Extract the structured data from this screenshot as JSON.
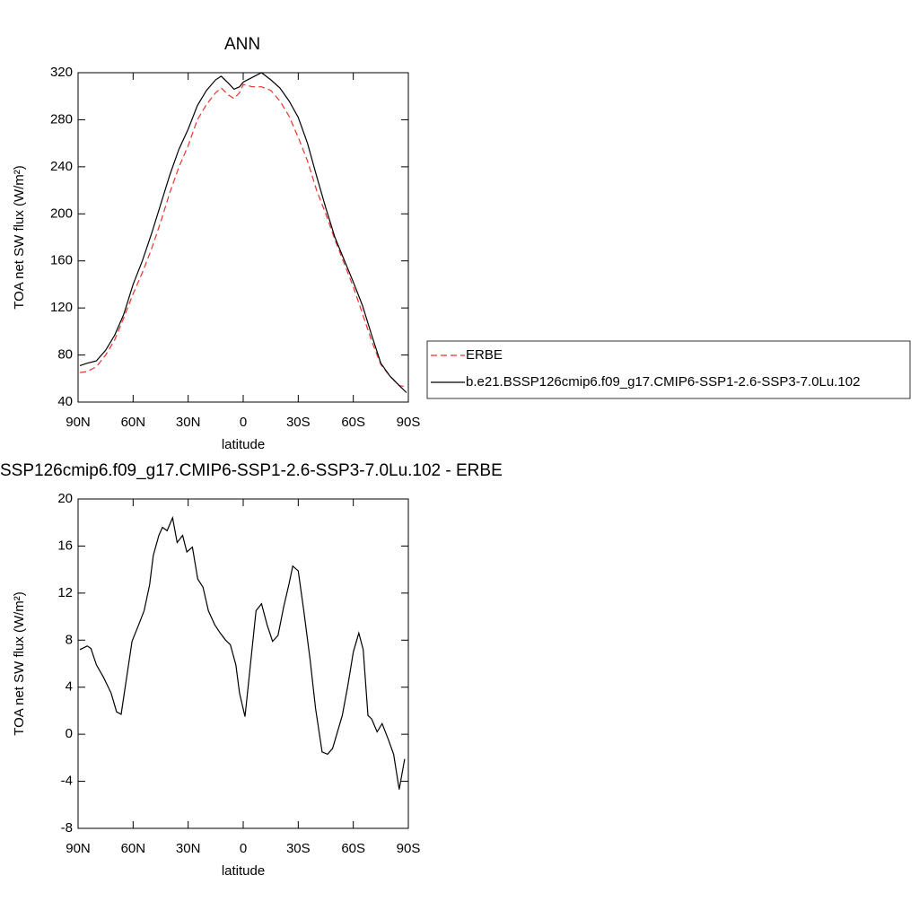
{
  "chart_data": [
    {
      "type": "line",
      "title": "ANN",
      "xlabel": "latitude",
      "ylabel": "TOA net SW flux (W/m²)",
      "x": [
        89,
        85,
        80,
        75,
        70,
        65,
        60,
        55,
        50,
        45,
        40,
        35,
        30,
        25,
        20,
        15,
        12,
        8,
        5,
        2,
        0,
        -5,
        -10,
        -15,
        -20,
        -25,
        -30,
        -35,
        -40,
        -45,
        -50,
        -55,
        -60,
        -65,
        -70,
        -75,
        -80,
        -85,
        -89
      ],
      "series": [
        {
          "name": "ERBE",
          "color": "#e8322c",
          "style": "dashed",
          "values": [
            65,
            66,
            70,
            80,
            93,
            112,
            132,
            150,
            170,
            193,
            218,
            240,
            258,
            280,
            293,
            303,
            307,
            301,
            298,
            303,
            310,
            308,
            308,
            305,
            296,
            283,
            265,
            245,
            220,
            200,
            178,
            158,
            138,
            115,
            92,
            72,
            62,
            54,
            53
          ]
        },
        {
          "name": "b.e21.BSSP126cmip6.f09_g17.CMIP6-SSP1-2.6-SSP3-7.0Lu.102",
          "color": "#000000",
          "style": "solid",
          "values": [
            71,
            73,
            75,
            84,
            97,
            115,
            140,
            160,
            183,
            208,
            233,
            255,
            272,
            292,
            305,
            314,
            317,
            311,
            306,
            308,
            312,
            316,
            320,
            314,
            307,
            296,
            282,
            260,
            232,
            205,
            180,
            161,
            142,
            122,
            97,
            73,
            62,
            54,
            48
          ]
        }
      ],
      "xlim": [
        90,
        -90
      ],
      "xticks": [
        {
          "value": 90,
          "label": "90N"
        },
        {
          "value": 60,
          "label": "60N"
        },
        {
          "value": 30,
          "label": "30N"
        },
        0,
        {
          "value": -30,
          "label": "30S"
        },
        {
          "value": -60,
          "label": "60S"
        },
        {
          "value": -90,
          "label": "90S"
        }
      ],
      "ylim": [
        40,
        320
      ],
      "yticks": [
        40,
        80,
        120,
        160,
        200,
        240,
        280,
        320
      ],
      "legend": "right"
    },
    {
      "type": "line",
      "title": "SSP126cmip6.f09_g17.CMIP6-SSP1-2.6-SSP3-7.0Lu.102 - ERBE",
      "xlabel": "latitude",
      "ylabel": "TOA net SW flux (W/m²)",
      "x": [
        89,
        85,
        83,
        80,
        76,
        72,
        69,
        66.5,
        60.6,
        57,
        54,
        51,
        49,
        46,
        44,
        41.5,
        38.5,
        36,
        33,
        30.7,
        27.7,
        24.8,
        21.9,
        19,
        15.5,
        12.5,
        9.6,
        7,
        4,
        2,
        -1,
        -7,
        -10,
        -13,
        -16,
        -19,
        -22,
        -25,
        -27,
        -30,
        -33,
        -36.5,
        -39.4,
        -43,
        -46,
        -48.7,
        -54,
        -57,
        -60,
        -63,
        -65.4,
        -68,
        -70,
        -73,
        -75.7,
        -79,
        -82,
        -85,
        -88
      ],
      "series": [
        {
          "name": null,
          "color": "#000000",
          "style": "solid",
          "values": [
            7.2,
            7.5,
            7.3,
            5.9,
            4.8,
            3.5,
            1.9,
            1.7,
            7.9,
            9.3,
            10.5,
            12.7,
            15.2,
            16.9,
            17.6,
            17.3,
            18.4,
            16.3,
            16.9,
            15.5,
            15.9,
            13.2,
            12.5,
            10.5,
            9.3,
            8.6,
            8.0,
            7.6,
            5.9,
            3.5,
            1.5,
            10.5,
            11.1,
            9.3,
            7.9,
            8.4,
            10.8,
            12.8,
            14.3,
            13.9,
            10.5,
            6.3,
            2.2,
            -1.5,
            -1.7,
            -1.2,
            1.6,
            4.1,
            7.0,
            8.6,
            7.2,
            1.6,
            1.3,
            0.2,
            0.9,
            -0.4,
            -1.7,
            -4.7,
            -2.1
          ]
        }
      ],
      "xlim": [
        90,
        -90
      ],
      "xticks": [
        {
          "value": 90,
          "label": "90N"
        },
        {
          "value": 60,
          "label": "60N"
        },
        {
          "value": 30,
          "label": "30N"
        },
        0,
        {
          "value": -30,
          "label": "30S"
        },
        {
          "value": -60,
          "label": "60S"
        },
        {
          "value": -90,
          "label": "90S"
        }
      ],
      "ylim": [
        -8,
        20
      ],
      "yticks": [
        -8,
        -4,
        0,
        4,
        8,
        12,
        16,
        20
      ]
    }
  ]
}
